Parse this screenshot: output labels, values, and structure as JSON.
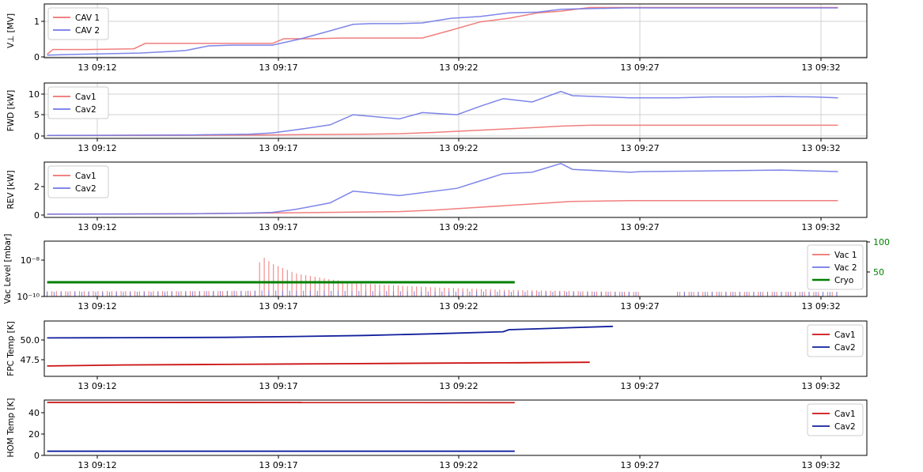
{
  "chart_data": [
    {
      "type": "line",
      "ylabel": "V⊥ [MV]",
      "yticks": [
        "0",
        "1"
      ],
      "ylim": [
        -0.05,
        1.45
      ],
      "x_tick_labels": [
        "13 09:12",
        "13 09:17",
        "13 09:22",
        "13 09:27",
        "13 09:32"
      ],
      "xlim": [
        "09:10:45",
        "09:34:30"
      ],
      "grid": true,
      "legend_position": "upper left",
      "series": [
        {
          "name": "CAV 1",
          "color": "#f07070",
          "x": [
            "09:10:50",
            "09:11:00",
            "09:11:45",
            "09:12:00",
            "09:13:20",
            "09:13:40",
            "09:14:20",
            "09:15:00",
            "09:15:40",
            "09:16:20",
            "09:16:50",
            "09:17:20",
            "09:17:40",
            "09:18:30",
            "09:19:20",
            "09:20:10",
            "09:21:00",
            "09:21:40",
            "09:22:30",
            "09:23:20",
            "09:24:10",
            "09:25:00",
            "09:25:40",
            "09:26:30",
            "09:27:30",
            "09:28:00",
            "09:29:00",
            "09:30:00",
            "09:31:00",
            "09:32:00",
            "09:33:00",
            "09:33:40"
          ],
          "y": [
            0.05,
            0.18,
            0.18,
            0.18,
            0.2,
            0.35,
            0.35,
            0.35,
            0.35,
            0.35,
            0.35,
            0.35,
            0.48,
            0.48,
            0.5,
            0.5,
            0.5,
            0.5,
            0.72,
            0.95,
            1.05,
            1.2,
            1.25,
            1.35,
            1.35,
            1.35,
            1.35,
            1.35,
            1.35,
            1.35,
            1.35,
            1.35
          ]
        },
        {
          "name": "CAV 2",
          "color": "#6f78e6",
          "x": [
            "09:10:50",
            "09:11:30",
            "09:12:30",
            "09:13:30",
            "09:14:20",
            "09:14:50",
            "09:15:30",
            "09:16:10",
            "09:16:40",
            "09:17:20",
            "09:18:10",
            "09:19:00",
            "09:19:40",
            "09:20:10",
            "09:21:00",
            "09:21:40",
            "09:22:30",
            "09:23:20",
            "09:24:10",
            "09:25:00",
            "09:25:40",
            "09:26:30",
            "09:27:30",
            "09:28:00",
            "09:29:00",
            "09:30:00",
            "09:31:00",
            "09:32:00",
            "09:33:00",
            "09:33:40"
          ],
          "y": [
            0.02,
            0.04,
            0.06,
            0.08,
            0.12,
            0.15,
            0.28,
            0.3,
            0.3,
            0.3,
            0.48,
            0.7,
            0.88,
            0.9,
            0.9,
            0.92,
            1.05,
            1.1,
            1.2,
            1.22,
            1.3,
            1.32,
            1.34,
            1.34,
            1.34,
            1.34,
            1.34,
            1.34,
            1.34,
            1.34
          ]
        }
      ]
    },
    {
      "type": "line",
      "ylabel": "FWD [kW]",
      "yticks": [
        "0",
        "5",
        "10"
      ],
      "ylim": [
        -0.6,
        12.5
      ],
      "x_tick_labels": [
        "13 09:12",
        "13 09:17",
        "13 09:22",
        "13 09:27",
        "13 09:32"
      ],
      "xlim": [
        "09:10:45",
        "09:34:30"
      ],
      "grid": true,
      "legend_position": "upper left",
      "series": [
        {
          "name": "Cav1",
          "color": "#f07070",
          "x": [
            "09:10:50",
            "09:13:00",
            "09:15:00",
            "09:17:00",
            "09:18:30",
            "09:20:00",
            "09:21:00",
            "09:22:00",
            "09:23:00",
            "09:24:00",
            "09:25:00",
            "09:25:40",
            "09:26:30",
            "09:27:40",
            "09:28:00",
            "09:30:00",
            "09:32:00",
            "09:33:40"
          ],
          "y": [
            0.1,
            0.1,
            0.15,
            0.2,
            0.3,
            0.4,
            0.5,
            0.8,
            1.2,
            1.6,
            2.0,
            2.3,
            2.5,
            2.5,
            2.5,
            2.5,
            2.5,
            2.5
          ]
        },
        {
          "name": "Cav2",
          "color": "#6f78e6",
          "x": [
            "09:10:50",
            "09:13:00",
            "09:15:00",
            "09:16:40",
            "09:17:20",
            "09:18:00",
            "09:19:00",
            "09:19:40",
            "09:21:00",
            "09:21:40",
            "09:22:40",
            "09:23:20",
            "09:24:00",
            "09:24:50",
            "09:25:40",
            "09:26:00",
            "09:27:40",
            "09:28:00",
            "09:29:00",
            "09:30:00",
            "09:31:00",
            "09:32:00",
            "09:33:00",
            "09:33:40"
          ],
          "y": [
            0.1,
            0.15,
            0.2,
            0.4,
            0.7,
            1.4,
            2.6,
            5.0,
            4.0,
            5.5,
            5.0,
            7.0,
            8.8,
            8.0,
            10.5,
            9.5,
            9.0,
            9.0,
            9.0,
            9.2,
            9.2,
            9.3,
            9.2,
            9.0
          ]
        }
      ]
    },
    {
      "type": "line",
      "ylabel": "REV [kW]",
      "yticks": [
        "0",
        "2"
      ],
      "ylim": [
        -0.2,
        3.6
      ],
      "x_tick_labels": [
        "13 09:12",
        "13 09:17",
        "13 09:22",
        "13 09:27",
        "13 09:32"
      ],
      "xlim": [
        "09:10:45",
        "09:34:30"
      ],
      "grid": false,
      "legend_position": "upper left",
      "series": [
        {
          "name": "Cav1",
          "color": "#f07070",
          "x": [
            "09:10:50",
            "09:15:00",
            "09:17:00",
            "09:19:00",
            "09:21:00",
            "09:22:00",
            "09:23:00",
            "09:24:00",
            "09:25:00",
            "09:26:00",
            "09:27:40",
            "09:28:00",
            "09:30:00",
            "09:32:00",
            "09:33:40"
          ],
          "y": [
            0.02,
            0.05,
            0.1,
            0.15,
            0.2,
            0.3,
            0.45,
            0.6,
            0.75,
            0.9,
            0.95,
            0.95,
            0.95,
            0.95,
            0.95
          ]
        },
        {
          "name": "Cav2",
          "color": "#6f78e6",
          "x": [
            "09:10:50",
            "09:15:00",
            "09:16:40",
            "09:17:20",
            "09:18:00",
            "09:19:00",
            "09:19:40",
            "09:21:00",
            "09:22:40",
            "09:23:20",
            "09:24:00",
            "09:24:50",
            "09:25:40",
            "09:26:00",
            "09:27:40",
            "09:28:00",
            "09:30:00",
            "09:32:00",
            "09:33:40"
          ],
          "y": [
            0.02,
            0.05,
            0.1,
            0.15,
            0.35,
            0.8,
            1.6,
            1.3,
            1.8,
            2.3,
            2.8,
            2.9,
            3.5,
            3.1,
            2.9,
            2.95,
            3.0,
            3.05,
            2.95
          ]
        }
      ]
    },
    {
      "type": "line",
      "ylabel": "Vac Level [mbar]",
      "yscale": "log",
      "yticks": [
        "10⁻¹⁰",
        "10⁻⁸"
      ],
      "right_yticks": [
        "50",
        "100"
      ],
      "right_tick_color": "#008000",
      "x_tick_labels": [
        "13 09:12",
        "13 09:17",
        "13 09:22",
        "13 09:27",
        "13 09:32"
      ],
      "xlim": [
        "09:10:45",
        "09:34:30"
      ],
      "grid": false,
      "legend_position": "upper right",
      "series": [
        {
          "name": "Vac 1",
          "color": "#f07070",
          "x": [
            "09:10:50",
            "09:14:00",
            "09:16:50",
            "09:17:00",
            "09:17:20",
            "09:18:00",
            "09:19:00",
            "09:20:00",
            "09:22:00",
            "09:24:00",
            "09:26:00",
            "09:27:30",
            "09:29:00",
            "09:31:00",
            "09:33:40"
          ],
          "y": [
            1.3e-10,
            1.3e-10,
            1.3e-10,
            8e-09,
            3e-09,
            1e-09,
            5e-10,
            3e-10,
            2e-10,
            1.5e-10,
            1.3e-10,
            1.2e-10,
            1.2e-10,
            1.2e-10,
            1.2e-10
          ]
        },
        {
          "name": "Vac 2",
          "color": "#6f78e6",
          "x": [
            "09:10:50",
            "09:14:00",
            "09:17:00",
            "09:20:00",
            "09:24:00",
            "09:27:30",
            "09:29:00",
            "09:31:00",
            "09:33:40"
          ],
          "y": [
            1.2e-10,
            1.2e-10,
            1.4e-10,
            1.3e-10,
            1.2e-10,
            1.2e-10,
            1.2e-10,
            1.2e-10,
            1.2e-10
          ]
        },
        {
          "name": "Cryo",
          "color": "#008000",
          "axis": "right",
          "x": [
            "09:10:50",
            "09:24:20"
          ],
          "y": [
            24,
            24
          ]
        }
      ]
    },
    {
      "type": "line",
      "ylabel": "FPC Temp [K]",
      "yticks": [
        "47.5",
        "50.0"
      ],
      "ylim": [
        45.3,
        52.0
      ],
      "x_tick_labels": [
        "13 09:12",
        "13 09:17",
        "13 09:22",
        "13 09:27",
        "13 09:32"
      ],
      "xlim": [
        "09:10:45",
        "09:34:30"
      ],
      "grid": false,
      "legend_position": "upper right",
      "series": [
        {
          "name": "Cav1",
          "color": "#cc1111",
          "x": [
            "09:10:50",
            "09:13:00",
            "09:16:00",
            "09:19:00",
            "09:22:00",
            "09:24:30",
            "09:26:30"
          ],
          "y": [
            46.55,
            46.68,
            46.75,
            46.82,
            46.9,
            46.95,
            47.0
          ]
        },
        {
          "name": "Cav2",
          "color": "#11209c",
          "x": [
            "09:10:50",
            "09:13:00",
            "09:16:00",
            "09:18:00",
            "09:20:00",
            "09:22:00",
            "09:24:00",
            "09:24:10",
            "09:25:00",
            "09:26:00",
            "09:27:10"
          ],
          "y": [
            49.95,
            49.98,
            50.02,
            50.12,
            50.25,
            50.45,
            50.7,
            50.95,
            51.05,
            51.2,
            51.35
          ]
        }
      ]
    },
    {
      "type": "line",
      "ylabel": "HOM Temp [K]",
      "yticks": [
        "0",
        "20",
        "40"
      ],
      "ylim": [
        -1,
        52
      ],
      "x_tick_labels": [
        "13 09:12",
        "13 09:17",
        "13 09:22",
        "13 09:27",
        "13 09:32"
      ],
      "xlim": [
        "09:10:45",
        "09:34:30"
      ],
      "grid": false,
      "legend_position": "upper right",
      "series": [
        {
          "name": "Cav1",
          "color": "#cc1111",
          "x": [
            "09:10:50",
            "09:24:20"
          ],
          "y": [
            49.7,
            49.6
          ]
        },
        {
          "name": "Cav2",
          "color": "#11209c",
          "x": [
            "09:10:50",
            "09:24:20"
          ],
          "y": [
            3.0,
            3.0
          ]
        }
      ]
    }
  ]
}
